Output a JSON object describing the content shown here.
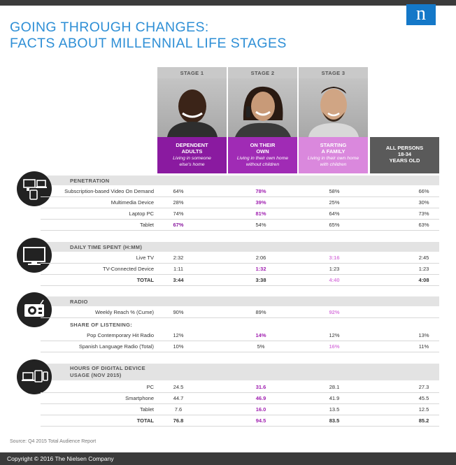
{
  "title": {
    "line1": "GOING THROUGH CHANGES:",
    "line2": "FACTS ABOUT MILLENNIAL LIFE STAGES"
  },
  "logo": {
    "letter": "n"
  },
  "stages": [
    {
      "label": "STAGE 1",
      "name_line1": "DEPENDENT",
      "name_line2": "ADULTS",
      "sub_line1": "Living in someone",
      "sub_line2": "else's home"
    },
    {
      "label": "STAGE 2",
      "name_line1": "ON THEIR",
      "name_line2": "OWN",
      "sub_line1": "Living in their own home",
      "sub_line2": "without children"
    },
    {
      "label": "STAGE 3",
      "name_line1": "STARTING",
      "name_line2": "A FAMILY",
      "sub_line1": "Living in their own home",
      "sub_line2": "with children"
    }
  ],
  "all_persons": {
    "line1": "ALL PERSONS",
    "line2": "18-34",
    "line3": "YEARS OLD"
  },
  "sections": {
    "penetration": {
      "header": "PENETRATION",
      "rows": [
        {
          "label": "Subscription-based Video On Demand",
          "v": [
            "64%",
            "78%",
            "58%",
            "66%"
          ]
        },
        {
          "label": "Multimedia  Device",
          "v": [
            "28%",
            "39%",
            "25%",
            "30%"
          ]
        },
        {
          "label": "Laptop PC",
          "v": [
            "74%",
            "81%",
            "64%",
            "73%"
          ]
        },
        {
          "label": "Tablet",
          "v": [
            "67%",
            "54%",
            "65%",
            "63%"
          ]
        }
      ]
    },
    "daily_time": {
      "header": "DAILY TIME SPENT (H:MM)",
      "rows": [
        {
          "label": "Live TV",
          "v": [
            "2:32",
            "2:06",
            "3:16",
            "2:45"
          ]
        },
        {
          "label": "TV-Connected Device",
          "v": [
            "1:11",
            "1:32",
            "1:23",
            "1:23"
          ]
        },
        {
          "label": "TOTAL",
          "v": [
            "3:44",
            "3:38",
            "4:40",
            "4:08"
          ]
        }
      ]
    },
    "radio": {
      "header": "RADIO",
      "rows": [
        {
          "label": "Weekly Reach % (Cume)",
          "v": [
            "90%",
            "89%",
            "92%",
            ""
          ]
        }
      ],
      "subheader": "SHARE OF LISTENING:",
      "share_rows": [
        {
          "label": "Pop Contemporary Hit Radio",
          "v": [
            "12%",
            "14%",
            "12%",
            "13%"
          ]
        },
        {
          "label": "Spanish Language Radio (Total)",
          "v": [
            "10%",
            "5%",
            "16%",
            "11%"
          ]
        }
      ]
    },
    "digital": {
      "header_line1": "HOURS OF DIGITAL DEVICE",
      "header_line2": "USAGE (NOV 2015)",
      "rows": [
        {
          "label": "PC",
          "v": [
            "24.5",
            "31.6",
            "28.1",
            "27.3"
          ]
        },
        {
          "label": "Smartphone",
          "v": [
            "44.7",
            "46.9",
            "41.9",
            "45.5"
          ]
        },
        {
          "label": "Tablet",
          "v": [
            "7.6",
            "16.0",
            "13.5",
            "12.5"
          ]
        },
        {
          "label": "TOTAL",
          "v": [
            "76.8",
            "94.5",
            "83.5",
            "85.2"
          ]
        }
      ]
    }
  },
  "source": "Source: Q4 2015 Total Audience Report",
  "copyright": "Copyright © 2016 The Nielsen Company"
}
